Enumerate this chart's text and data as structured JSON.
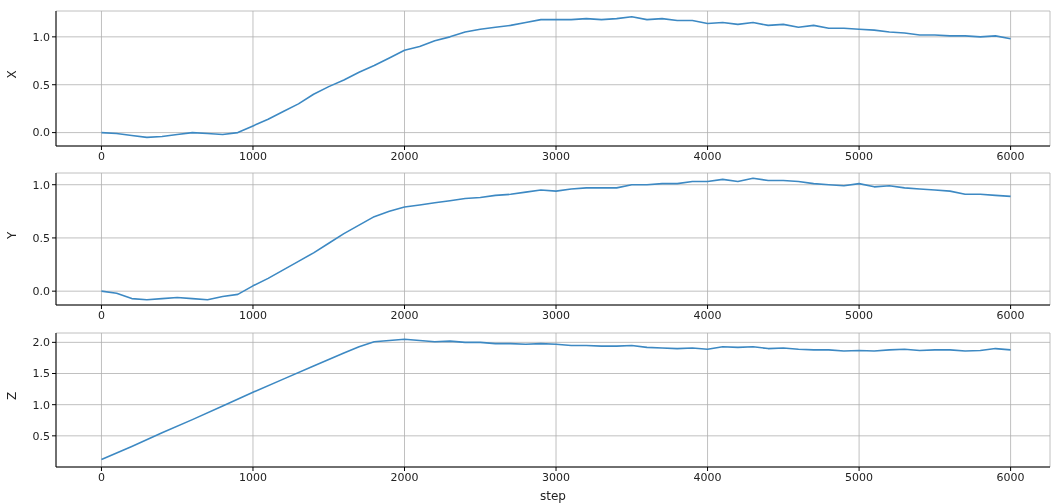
{
  "chart_data": [
    {
      "type": "line",
      "ylabel": "X",
      "grid": true,
      "xlim": [
        -300,
        6260
      ],
      "xticks": [
        0,
        1000,
        2000,
        3000,
        4000,
        5000,
        6000
      ],
      "ylim": [
        -0.14,
        1.27
      ],
      "yticks": [
        {
          "value": 0,
          "label": "0.0"
        },
        {
          "value": 0.5,
          "label": "0.5"
        },
        {
          "value": 1,
          "label": "1.0"
        }
      ],
      "x": [
        0,
        100,
        200,
        300,
        400,
        500,
        600,
        700,
        800,
        900,
        1000,
        1100,
        1200,
        1300,
        1400,
        1500,
        1600,
        1700,
        1800,
        1900,
        2000,
        2100,
        2200,
        2300,
        2400,
        2500,
        2600,
        2700,
        2800,
        2900,
        3000,
        3100,
        3200,
        3300,
        3400,
        3500,
        3600,
        3700,
        3800,
        3900,
        4000,
        4100,
        4200,
        4300,
        4400,
        4500,
        4600,
        4700,
        4800,
        4900,
        5000,
        5100,
        5200,
        5300,
        5400,
        5500,
        5600,
        5700,
        5800,
        5900,
        6000
      ],
      "series": [
        {
          "color": "#3d89c3",
          "values": [
            0,
            -0.01,
            -0.03,
            -0.05,
            -0.04,
            -0.02,
            0,
            -0.01,
            -0.02,
            0,
            0.07,
            0.14,
            0.22,
            0.3,
            0.4,
            0.48,
            0.55,
            0.63,
            0.7,
            0.78,
            0.86,
            0.9,
            0.96,
            1.0,
            1.05,
            1.08,
            1.1,
            1.12,
            1.15,
            1.18,
            1.18,
            1.18,
            1.19,
            1.18,
            1.19,
            1.21,
            1.18,
            1.19,
            1.17,
            1.17,
            1.14,
            1.15,
            1.13,
            1.15,
            1.12,
            1.13,
            1.1,
            1.12,
            1.09,
            1.09,
            1.08,
            1.07,
            1.05,
            1.04,
            1.02,
            1.02,
            1.01,
            1.01,
            1.0,
            1.01,
            0.98
          ]
        }
      ]
    },
    {
      "type": "line",
      "ylabel": "Y",
      "grid": true,
      "xlim": [
        -300,
        6260
      ],
      "xticks": [
        0,
        1000,
        2000,
        3000,
        4000,
        5000,
        6000
      ],
      "ylim": [
        -0.13,
        1.11
      ],
      "yticks": [
        {
          "value": 0,
          "label": "0.0"
        },
        {
          "value": 0.5,
          "label": "0.5"
        },
        {
          "value": 1,
          "label": "1.0"
        }
      ],
      "x": [
        0,
        100,
        200,
        300,
        400,
        500,
        600,
        700,
        800,
        900,
        1000,
        1100,
        1200,
        1300,
        1400,
        1500,
        1600,
        1700,
        1800,
        1900,
        2000,
        2100,
        2200,
        2300,
        2400,
        2500,
        2600,
        2700,
        2800,
        2900,
        3000,
        3100,
        3200,
        3300,
        3400,
        3500,
        3600,
        3700,
        3800,
        3900,
        4000,
        4100,
        4200,
        4300,
        4400,
        4500,
        4600,
        4700,
        4800,
        4900,
        5000,
        5100,
        5200,
        5300,
        5400,
        5500,
        5600,
        5700,
        5800,
        5900,
        6000
      ],
      "series": [
        {
          "color": "#3d89c3",
          "values": [
            0,
            -0.02,
            -0.07,
            -0.08,
            -0.07,
            -0.06,
            -0.07,
            -0.08,
            -0.05,
            -0.03,
            0.05,
            0.12,
            0.2,
            0.28,
            0.36,
            0.45,
            0.54,
            0.62,
            0.7,
            0.75,
            0.79,
            0.81,
            0.83,
            0.85,
            0.87,
            0.88,
            0.9,
            0.91,
            0.93,
            0.95,
            0.94,
            0.96,
            0.97,
            0.97,
            0.97,
            1.0,
            1.0,
            1.01,
            1.01,
            1.03,
            1.03,
            1.05,
            1.03,
            1.06,
            1.04,
            1.04,
            1.03,
            1.01,
            1.0,
            0.99,
            1.01,
            0.98,
            0.99,
            0.97,
            0.96,
            0.95,
            0.94,
            0.91,
            0.91,
            0.9,
            0.89
          ]
        }
      ]
    },
    {
      "type": "line",
      "ylabel": "Z",
      "xlabel": "step",
      "grid": true,
      "xlim": [
        -300,
        6260
      ],
      "xticks": [
        0,
        1000,
        2000,
        3000,
        4000,
        5000,
        6000
      ],
      "ylim": [
        0,
        2.15
      ],
      "yticks": [
        {
          "value": 0.5,
          "label": "0.5"
        },
        {
          "value": 1,
          "label": "1.0"
        },
        {
          "value": 1.5,
          "label": "1.5"
        },
        {
          "value": 2,
          "label": "2.0"
        }
      ],
      "x": [
        0,
        200,
        400,
        600,
        800,
        1000,
        1200,
        1400,
        1600,
        1700,
        1800,
        1900,
        2000,
        2100,
        2200,
        2300,
        2400,
        2500,
        2600,
        2700,
        2800,
        2900,
        3000,
        3100,
        3200,
        3300,
        3400,
        3500,
        3600,
        3700,
        3800,
        3900,
        4000,
        4100,
        4200,
        4300,
        4400,
        4500,
        4600,
        4700,
        4800,
        4900,
        5000,
        5100,
        5200,
        5300,
        5400,
        5500,
        5600,
        5700,
        5800,
        5900,
        6000
      ],
      "series": [
        {
          "color": "#3d89c3",
          "values": [
            0.12,
            0.33,
            0.55,
            0.76,
            0.98,
            1.2,
            1.41,
            1.62,
            1.83,
            1.93,
            2.01,
            2.03,
            2.05,
            2.03,
            2.01,
            2.02,
            2.0,
            2.0,
            1.98,
            1.98,
            1.97,
            1.98,
            1.97,
            1.95,
            1.95,
            1.94,
            1.94,
            1.95,
            1.92,
            1.91,
            1.9,
            1.91,
            1.89,
            1.93,
            1.92,
            1.93,
            1.9,
            1.91,
            1.89,
            1.88,
            1.88,
            1.86,
            1.87,
            1.86,
            1.88,
            1.89,
            1.87,
            1.88,
            1.88,
            1.86,
            1.87,
            1.9,
            1.88
          ]
        }
      ]
    }
  ]
}
